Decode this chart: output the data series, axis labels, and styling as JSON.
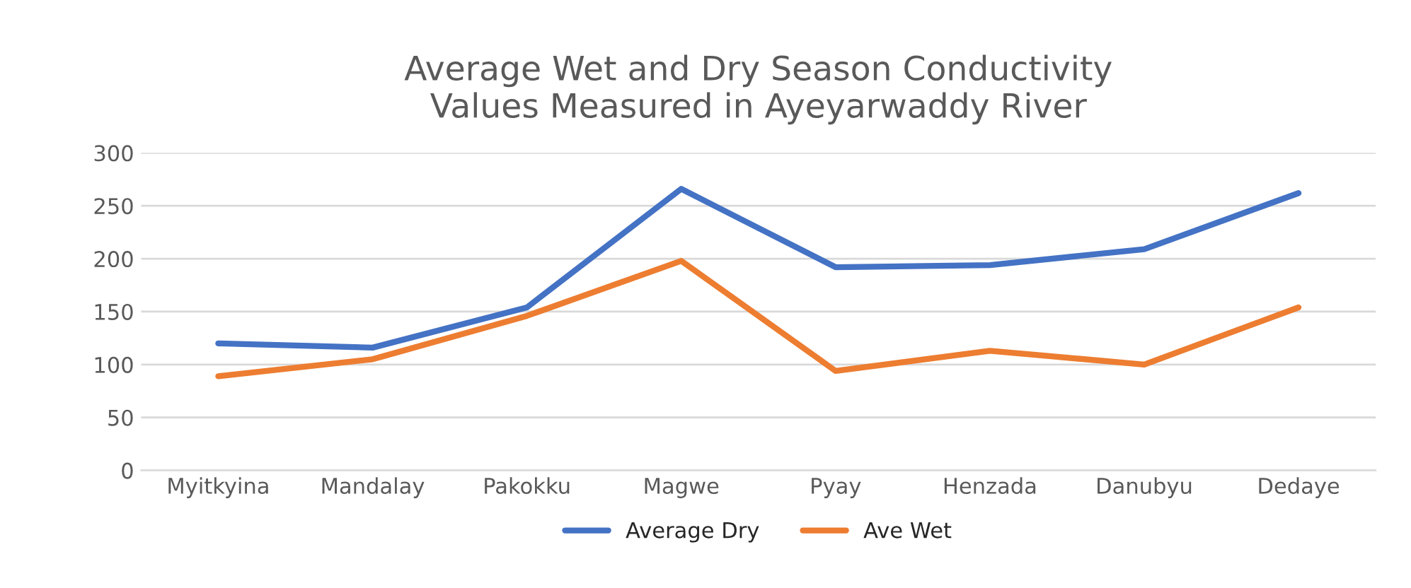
{
  "chart_data": {
    "type": "line",
    "title": "Average Wet and Dry Season Conductivity\nValues Measured in Ayeyarwaddy River",
    "categories": [
      "Myitkyina",
      "Mandalay",
      "Pakokku",
      "Magwe",
      "Pyay",
      "Henzada",
      "Danubyu",
      "Dedaye"
    ],
    "series": [
      {
        "name": "Average Dry",
        "color": "#4472c4",
        "values": [
          120,
          116,
          154,
          266,
          192,
          194,
          209,
          262
        ]
      },
      {
        "name": "Ave Wet",
        "color": "#ed7d31",
        "values": [
          89,
          105,
          146,
          198,
          94,
          113,
          100,
          154
        ]
      }
    ],
    "ylim": [
      0,
      300
    ],
    "yticks": [
      0,
      50,
      100,
      150,
      200,
      250,
      300
    ],
    "grid": "y",
    "legend": "bottom",
    "marker": "none",
    "line_style": "solid"
  }
}
